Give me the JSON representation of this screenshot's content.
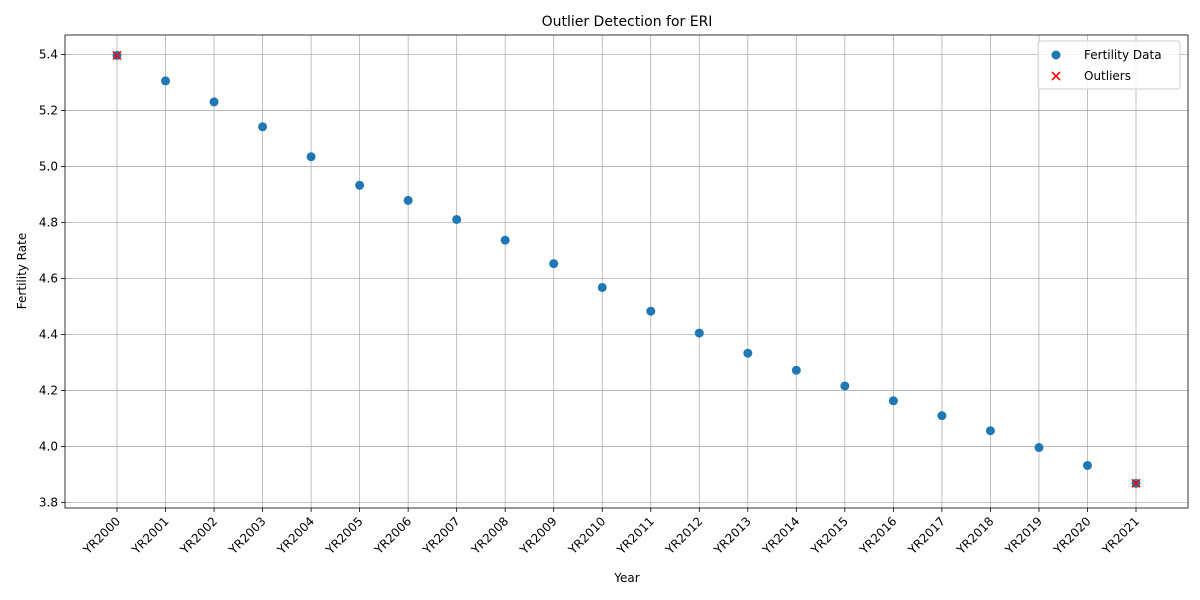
{
  "chart_data": {
    "type": "scatter",
    "title": "Outlier Detection for ERI",
    "xlabel": "Year",
    "ylabel": "Fertility Rate",
    "ylim": [
      3.78,
      5.47
    ],
    "yticks": [
      3.8,
      4.0,
      4.2,
      4.4,
      4.6,
      4.8,
      5.0,
      5.2,
      5.4
    ],
    "grid": true,
    "legend_position": "top-right",
    "categories": [
      "YR2000",
      "YR2001",
      "YR2002",
      "YR2003",
      "YR2004",
      "YR2005",
      "YR2006",
      "YR2007",
      "YR2008",
      "YR2009",
      "YR2010",
      "YR2011",
      "YR2012",
      "YR2013",
      "YR2014",
      "YR2015",
      "YR2016",
      "YR2017",
      "YR2018",
      "YR2019",
      "YR2020",
      "YR2021"
    ],
    "series": [
      {
        "name": "Fertility Data",
        "color": "#1f77b4",
        "marker": "circle",
        "values": [
          5.397,
          5.306,
          5.231,
          5.142,
          5.035,
          4.933,
          4.879,
          4.811,
          4.737,
          4.653,
          4.568,
          4.483,
          4.405,
          4.333,
          4.272,
          4.216,
          4.163,
          4.11,
          4.056,
          3.996,
          3.932,
          3.868
        ]
      },
      {
        "name": "Outliers",
        "color": "#ff0000",
        "marker": "x",
        "x": [
          "YR2000",
          "YR2021"
        ],
        "values": [
          5.397,
          3.868
        ]
      }
    ]
  }
}
